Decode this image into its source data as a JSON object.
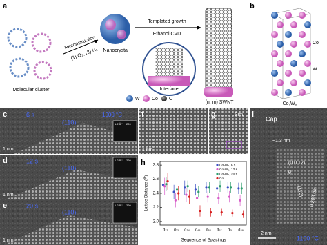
{
  "panels": {
    "a": {
      "label": "a",
      "reconstruction": "Reconstruction",
      "conditions": "(1) O₂, (2) H₂",
      "nanocrystal": "Nanocrystal",
      "templated_growth": "Templated growth",
      "ethanol_cvd": "Ethanol CVD",
      "molecular_cluster": "Molecular cluster",
      "interface": "Interface",
      "swnt": "(n, m) SWNT",
      "legend": [
        "W",
        "Co",
        "C"
      ]
    },
    "b": {
      "label": "b",
      "co": "Co",
      "w": "W",
      "formula": "Co₇W₆"
    },
    "c": {
      "label": "c",
      "time": "6 s",
      "plane": "(110)",
      "temperature": "1000 °C",
      "scale": "1 nm",
      "inset_scale": "1.2 Å⁻¹",
      "inset_spot": "220"
    },
    "d": {
      "label": "d",
      "time": "12 s",
      "plane": "(110)",
      "scale": "1 nm",
      "inset_scale": "1.2 Å⁻¹",
      "inset_spot": "220"
    },
    "e": {
      "label": "e",
      "time": "20 s",
      "plane": "(110)",
      "scale": "1 nm",
      "inset_scale": "1.2 Å⁻¹",
      "inset_spot": "220"
    },
    "f": {
      "label": "f",
      "scale": "1 nm"
    },
    "g": {
      "label": "g",
      "sim": "Sim."
    },
    "i": {
      "label": "i",
      "cap": "Cap",
      "diameter": "~1.3 nm",
      "plane1": "(0 0 12)",
      "angle": "θ",
      "plane2": "(116)",
      "spacing": "0.208 nm",
      "scale": "2 nm",
      "temperature": "1100 °C"
    }
  },
  "chart_data": {
    "type": "scatter",
    "label": "h",
    "xlabel": "Sequence of Spacings",
    "ylabel": "Lattice Distance (Å)",
    "categories": [
      "d₁₂",
      "d₂₃",
      "d₃₄",
      "d₄₅",
      "d₅₆",
      "d₆₇",
      "d₇₈",
      "d₈₉"
    ],
    "ylim": [
      1.95,
      2.85
    ],
    "yticks": [
      {
        "value": 2.0,
        "label": "2.0"
      },
      {
        "value": 2.2,
        "label": "2.2"
      },
      {
        "value": 2.4,
        "label": "2.4"
      },
      {
        "value": 2.6,
        "label": "2.6"
      },
      {
        "value": 2.8,
        "label": "2.8"
      }
    ],
    "series": [
      {
        "name": "Co₇W₆, 6 s",
        "color": "#3b4fc4",
        "values": [
          2.52,
          2.42,
          2.48,
          2.45,
          2.48,
          2.47,
          2.48,
          2.47
        ],
        "errors": [
          0.12,
          0.1,
          0.1,
          0.08,
          0.08,
          0.08,
          0.08,
          0.08
        ]
      },
      {
        "name": "Co₇W₆, 12 s",
        "color": "#d65cc8",
        "values": [
          2.5,
          2.3,
          2.38,
          2.33,
          2.35,
          2.33,
          2.35,
          2.3
        ],
        "errors": [
          0.12,
          0.1,
          0.1,
          0.08,
          0.08,
          0.08,
          0.08,
          0.08
        ]
      },
      {
        "name": "Co₇W₆, 20 s",
        "color": "#2e9e6e",
        "values": [
          2.53,
          2.45,
          2.5,
          2.42,
          2.48,
          2.5,
          2.48,
          2.47
        ],
        "errors": [
          0.1,
          0.1,
          0.08,
          0.08,
          0.08,
          0.08,
          0.08,
          0.08
        ]
      },
      {
        "name": "Co",
        "color": "#d62020",
        "values": [
          2.57,
          2.4,
          2.35,
          2.15,
          2.13,
          2.13,
          2.12,
          2.1
        ],
        "errors": [
          0.12,
          0.1,
          0.1,
          0.08,
          0.06,
          0.05,
          0.05,
          0.05
        ]
      }
    ]
  }
}
